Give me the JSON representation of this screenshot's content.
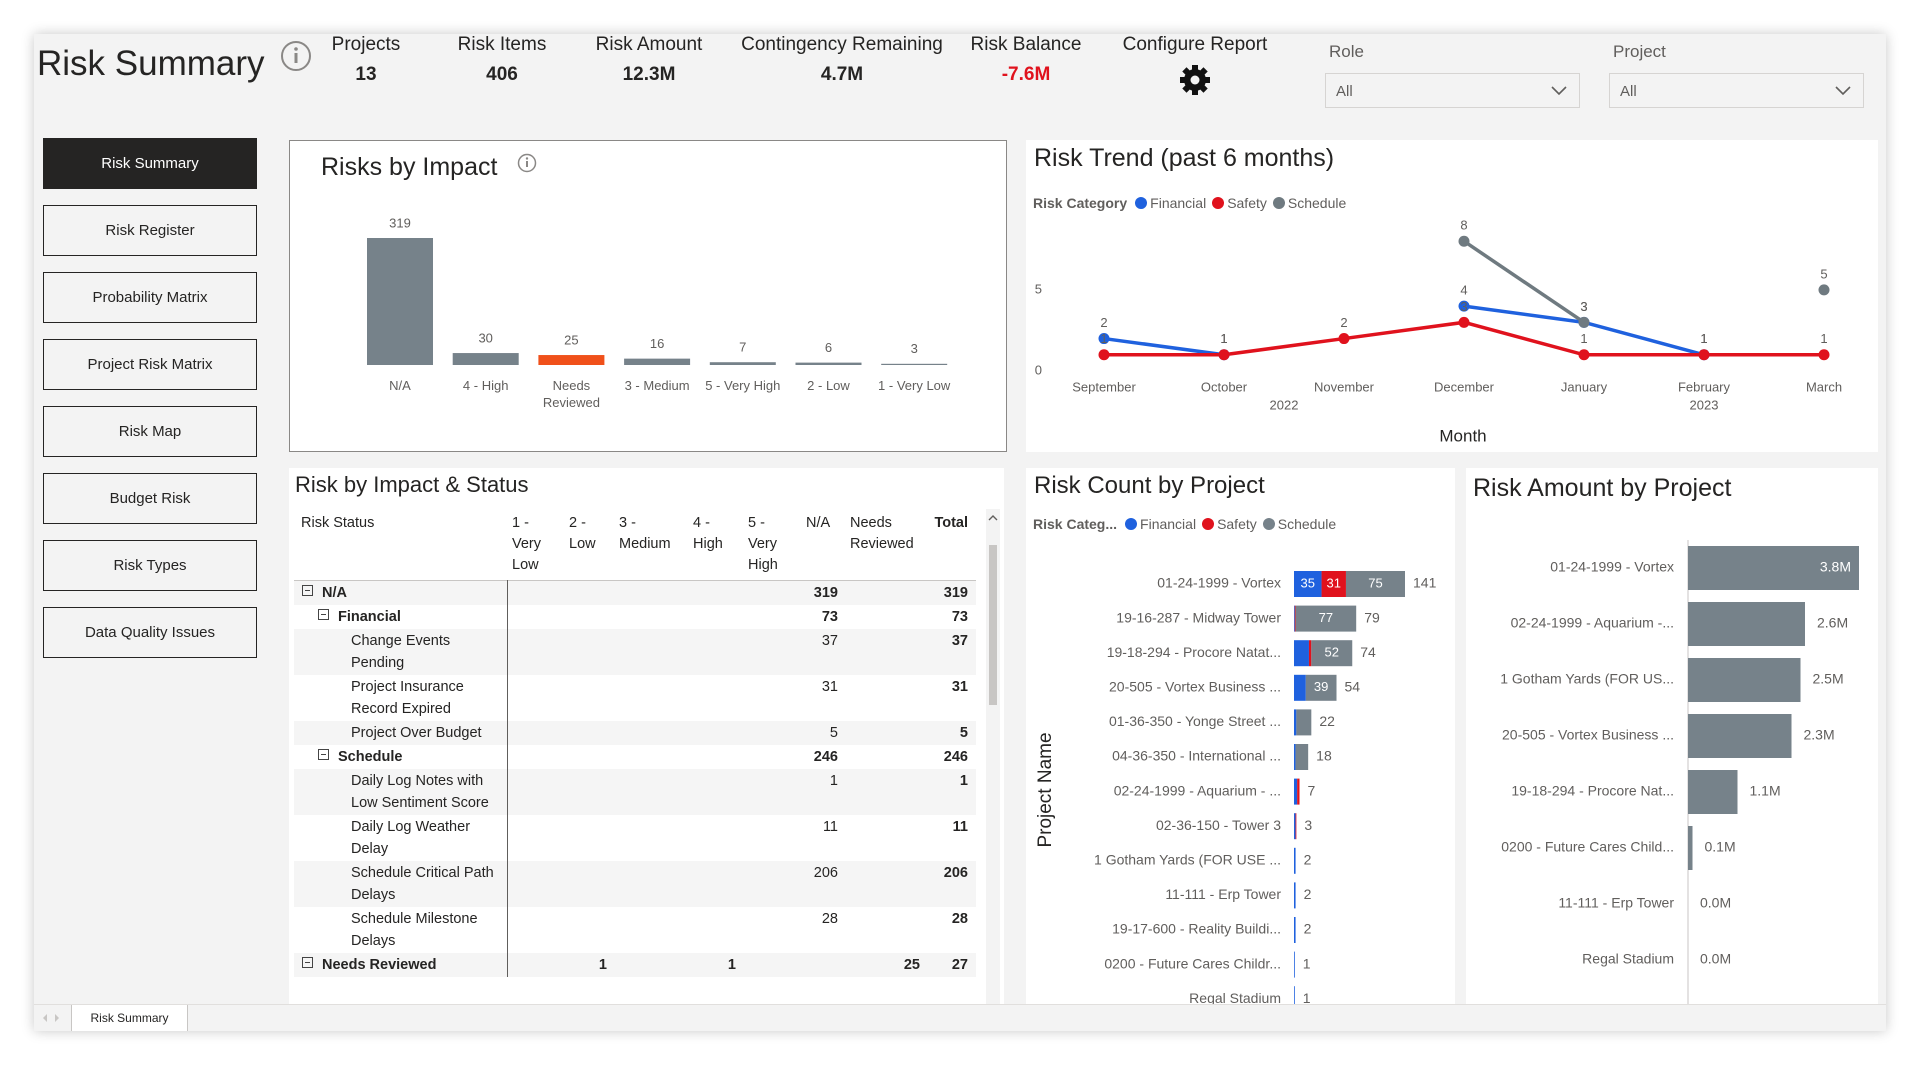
{
  "header": {
    "title": "Risk Summary",
    "kpis": [
      {
        "label": "Projects",
        "value": "13"
      },
      {
        "label": "Risk Items",
        "value": "406"
      },
      {
        "label": "Risk Amount",
        "value": "12.3M"
      },
      {
        "label": "Contingency Remaining",
        "value": "4.7M"
      },
      {
        "label": "Risk Balance",
        "value": "-7.6M",
        "color": "#e0121d"
      }
    ],
    "configure": "Configure Report",
    "filters": [
      {
        "label": "Role",
        "value": "All"
      },
      {
        "label": "Project",
        "value": "All"
      }
    ]
  },
  "nav": {
    "items": [
      "Risk Summary",
      "Risk Register",
      "Probability Matrix",
      "Project Risk Matrix",
      "Risk Map",
      "Budget Risk",
      "Risk Types",
      "Data Quality Issues"
    ],
    "active": 0
  },
  "table": {
    "title": "Risk by Impact & Status",
    "columns": [
      "Risk Status",
      "1 - Very Low",
      "2 - Low",
      "3 - Medium",
      "4 - High",
      "5 - Very High",
      "N/A",
      "Needs Reviewed",
      "Total"
    ],
    "rows": [
      {
        "label": "N/A",
        "level": 0,
        "cells": [
          null,
          null,
          null,
          null,
          null,
          319,
          null,
          319
        ]
      },
      {
        "label": "Financial",
        "level": 1,
        "cells": [
          null,
          null,
          null,
          null,
          null,
          73,
          null,
          73
        ]
      },
      {
        "label": "Change Events Pending",
        "level": 2,
        "cells": [
          null,
          null,
          null,
          null,
          null,
          37,
          null,
          37
        ]
      },
      {
        "label": "Project Insurance Record Expired",
        "level": 2,
        "cells": [
          null,
          null,
          null,
          null,
          null,
          31,
          null,
          31
        ]
      },
      {
        "label": "Project Over Budget",
        "level": 2,
        "cells": [
          null,
          null,
          null,
          null,
          null,
          5,
          null,
          5
        ]
      },
      {
        "label": "Schedule",
        "level": 1,
        "cells": [
          null,
          null,
          null,
          null,
          null,
          246,
          null,
          246
        ]
      },
      {
        "label": "Daily Log Notes with Low Sentiment Score",
        "level": 2,
        "cells": [
          null,
          null,
          null,
          null,
          null,
          1,
          null,
          1
        ]
      },
      {
        "label": "Daily Log Weather Delay",
        "level": 2,
        "cells": [
          null,
          null,
          null,
          null,
          null,
          11,
          null,
          11
        ]
      },
      {
        "label": "Schedule Critical Path Delays",
        "level": 2,
        "cells": [
          null,
          null,
          null,
          null,
          null,
          206,
          null,
          206
        ]
      },
      {
        "label": "Schedule Milestone Delays",
        "level": 2,
        "cells": [
          null,
          null,
          null,
          null,
          null,
          28,
          null,
          28
        ]
      },
      {
        "label": "Needs Reviewed",
        "level": 0,
        "cells": [
          null,
          1,
          null,
          1,
          null,
          null,
          25,
          27
        ]
      }
    ]
  },
  "chart_data": [
    {
      "type": "bar",
      "title": "Risks by Impact",
      "categories": [
        "N/A",
        "4 - High",
        "Needs Reviewed",
        "3 - Medium",
        "5 - Very High",
        "2 - Low",
        "1 - Very Low"
      ],
      "values": [
        319,
        30,
        25,
        16,
        7,
        6,
        3
      ],
      "colors": [
        "#76828a",
        "#76828a",
        "#f0501a",
        "#76828a",
        "#76828a",
        "#76828a",
        "#76828a"
      ]
    },
    {
      "type": "line",
      "title": "Risk Trend (past 6 months)",
      "legend_title": "Risk Category",
      "x_label": "Month",
      "categories": [
        "September",
        "October",
        "November",
        "December",
        "January",
        "February",
        "March"
      ],
      "x_groups": [
        "2022",
        "2022",
        "2022",
        "2022",
        "2023",
        "2023",
        "2023"
      ],
      "series": [
        {
          "name": "Financial",
          "color": "#1f61de",
          "values": [
            2,
            1,
            null,
            4,
            3,
            1,
            null
          ]
        },
        {
          "name": "Safety",
          "color": "#e0121d",
          "values": [
            1,
            1,
            2,
            3,
            1,
            1,
            1
          ]
        },
        {
          "name": "Schedule",
          "color": "#6f7a80",
          "values": [
            null,
            null,
            null,
            8,
            3,
            null,
            5
          ]
        }
      ],
      "ylim": [
        0,
        9
      ],
      "yticks": [
        0,
        5
      ]
    },
    {
      "type": "stacked_barh",
      "title": "Risk Count by Project",
      "legend_title": "Risk Categ...",
      "y_label": "Project Name",
      "categories": [
        "01-24-1999 - Vortex",
        "19-16-287 - Midway Tower",
        "19-18-294 - Procore Natat...",
        "20-505 - Vortex Business ...",
        "01-36-350 - Yonge Street ...",
        "04-36-350 - International ...",
        "02-24-1999 - Aquarium - ...",
        "02-36-150 - Tower 3",
        "1 Gotham Yards (FOR USE ...",
        "11-111 - Erp Tower",
        "19-17-600 - Reality Buildi...",
        "0200 - Future Cares Childr...",
        "Regal Stadium"
      ],
      "series": [
        {
          "name": "Financial",
          "color": "#1f61de",
          "values": [
            35,
            1,
            19,
            15,
            3,
            2,
            4,
            2,
            2,
            2,
            2,
            1,
            1
          ]
        },
        {
          "name": "Safety",
          "color": "#e0121d",
          "values": [
            31,
            1,
            3,
            null,
            null,
            null,
            3,
            1,
            null,
            null,
            null,
            null,
            null
          ]
        },
        {
          "name": "Schedule",
          "color": "#76828a",
          "values": [
            75,
            77,
            52,
            39,
            19,
            16,
            null,
            null,
            null,
            null,
            null,
            null,
            null
          ]
        }
      ],
      "totals": [
        141,
        79,
        74,
        54,
        22,
        18,
        7,
        3,
        2,
        2,
        2,
        1,
        1
      ]
    },
    {
      "type": "barh",
      "title": "Risk Amount by Project",
      "categories": [
        "01-24-1999 - Vortex",
        "02-24-1999 - Aquarium -...",
        "1 Gotham Yards (FOR US...",
        "20-505 - Vortex Business ...",
        "19-18-294 - Procore Nat...",
        "0200 - Future Cares Child...",
        "11-111 - Erp Tower",
        "Regal Stadium"
      ],
      "values": [
        3800000,
        2600000,
        2500000,
        2300000,
        1100000,
        100000,
        0,
        0
      ],
      "value_labels": [
        "3.8M",
        "2.6M",
        "2.5M",
        "2.3M",
        "1.1M",
        "0.1M",
        "0.0M",
        "0.0M"
      ],
      "color": "#76828a"
    }
  ],
  "tabs": [
    "Risk Summary"
  ]
}
